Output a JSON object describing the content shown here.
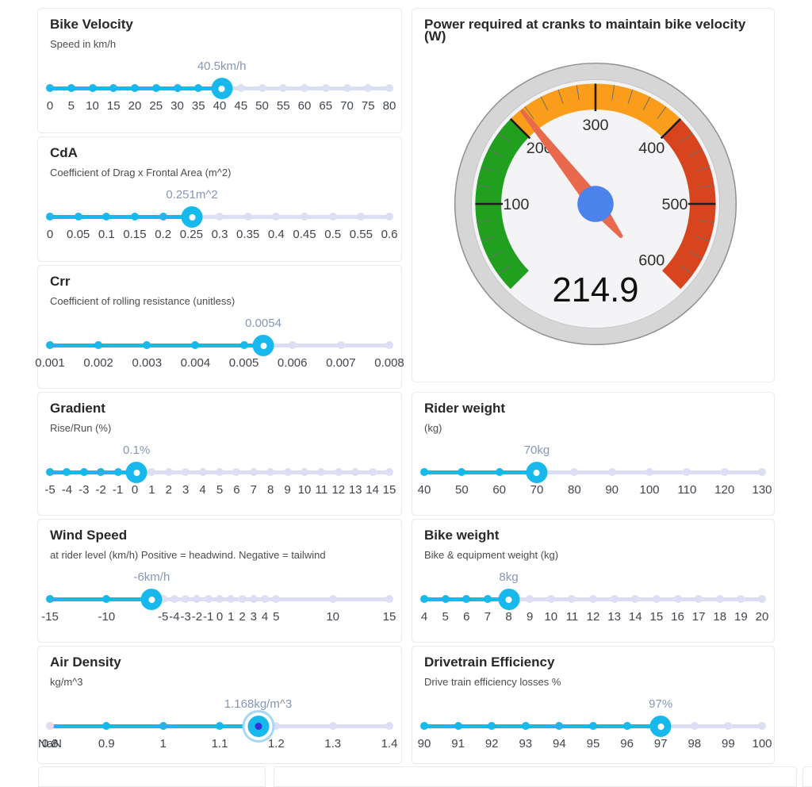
{
  "colors": {
    "slider_accent": "#17b8ec",
    "slider_inactive": "#dcdff3",
    "slider_value_label": "#8697b6",
    "slider_tick_label": "#41454d",
    "focused_handle_dot": "#3432d6",
    "focused_handle_halo": "#a6d7f3",
    "gauge_green": "#21a01f",
    "gauge_orange": "#f99d1b",
    "gauge_red": "#d7441d",
    "gauge_needle": "#e9694d",
    "gauge_pivot": "#4c83ed",
    "gauge_ring": "#d6d6d6",
    "gauge_face": "#f4f4f6"
  },
  "cards": {
    "bike_velocity": {
      "title": "Bike Velocity",
      "subtitle": "Speed in km/h",
      "slider": {
        "min": 0,
        "max": 80,
        "value": 40.5,
        "value_label": "40.5km/h",
        "marks": [
          {
            "v": 0,
            "label": "0"
          },
          {
            "v": 5,
            "label": "5"
          },
          {
            "v": 10,
            "label": "10"
          },
          {
            "v": 15,
            "label": "15"
          },
          {
            "v": 20,
            "label": "20"
          },
          {
            "v": 25,
            "label": "25"
          },
          {
            "v": 30,
            "label": "30"
          },
          {
            "v": 35,
            "label": "35"
          },
          {
            "v": 40,
            "label": "40"
          },
          {
            "v": 45,
            "label": "45"
          },
          {
            "v": 50,
            "label": "50"
          },
          {
            "v": 55,
            "label": "55"
          },
          {
            "v": 60,
            "label": "60"
          },
          {
            "v": 65,
            "label": "65"
          },
          {
            "v": 70,
            "label": "70"
          },
          {
            "v": 75,
            "label": "75"
          },
          {
            "v": 80,
            "label": "80"
          }
        ]
      }
    },
    "cda": {
      "title": "CdA",
      "subtitle": "Coefficient of Drag x Frontal Area (m^2)",
      "slider": {
        "min": 0,
        "max": 0.6,
        "value": 0.251,
        "value_label": "0.251m^2",
        "marks": [
          {
            "v": 0,
            "label": "0"
          },
          {
            "v": 0.05,
            "label": "0.05"
          },
          {
            "v": 0.1,
            "label": "0.1"
          },
          {
            "v": 0.15,
            "label": "0.15"
          },
          {
            "v": 0.2,
            "label": "0.2"
          },
          {
            "v": 0.25,
            "label": "0.25"
          },
          {
            "v": 0.3,
            "label": "0.3"
          },
          {
            "v": 0.35,
            "label": "0.35"
          },
          {
            "v": 0.4,
            "label": "0.4"
          },
          {
            "v": 0.45,
            "label": "0.45"
          },
          {
            "v": 0.5,
            "label": "0.5"
          },
          {
            "v": 0.55,
            "label": "0.55"
          },
          {
            "v": 0.6,
            "label": "0.6"
          }
        ]
      }
    },
    "crr": {
      "title": "Crr",
      "subtitle": "Coefficient of rolling resistance (unitless)",
      "slider": {
        "min": 0.001,
        "max": 0.008,
        "value": 0.0054,
        "value_label": "0.0054",
        "marks": [
          {
            "v": 0.001,
            "label": "0.001"
          },
          {
            "v": 0.002,
            "label": "0.002"
          },
          {
            "v": 0.003,
            "label": "0.003"
          },
          {
            "v": 0.004,
            "label": "0.004"
          },
          {
            "v": 0.005,
            "label": "0.005"
          },
          {
            "v": 0.006,
            "label": "0.006"
          },
          {
            "v": 0.007,
            "label": "0.007"
          },
          {
            "v": 0.008,
            "label": "0.008"
          }
        ]
      }
    },
    "gradient": {
      "title": "Gradient",
      "subtitle": "Rise/Run (%)",
      "slider": {
        "min": -5,
        "max": 15,
        "value": 0.1,
        "value_label": "0.1%",
        "marks": [
          {
            "v": -5,
            "label": "-5"
          },
          {
            "v": -4,
            "label": "-4"
          },
          {
            "v": -3,
            "label": "-3"
          },
          {
            "v": -2,
            "label": "-2"
          },
          {
            "v": -1,
            "label": "-1"
          },
          {
            "v": 0,
            "label": "0"
          },
          {
            "v": 1,
            "label": "1"
          },
          {
            "v": 2,
            "label": "2"
          },
          {
            "v": 3,
            "label": "3"
          },
          {
            "v": 4,
            "label": "4"
          },
          {
            "v": 5,
            "label": "5"
          },
          {
            "v": 6,
            "label": "6"
          },
          {
            "v": 7,
            "label": "7"
          },
          {
            "v": 8,
            "label": "8"
          },
          {
            "v": 9,
            "label": "9"
          },
          {
            "v": 10,
            "label": "10"
          },
          {
            "v": 11,
            "label": "11"
          },
          {
            "v": 12,
            "label": "12"
          },
          {
            "v": 13,
            "label": "13"
          },
          {
            "v": 14,
            "label": "14"
          },
          {
            "v": 15,
            "label": "15"
          }
        ]
      }
    },
    "wind_speed": {
      "title": "Wind Speed",
      "subtitle": "at rider level (km/h) Positive = headwind. Negative = tailwind",
      "slider": {
        "min": -15,
        "max": 15,
        "value": -6,
        "value_label": "-6km/h",
        "marks": [
          {
            "v": -15,
            "label": "-15"
          },
          {
            "v": -10,
            "label": "-10"
          },
          {
            "v": -5,
            "label": "-5"
          },
          {
            "v": -4,
            "label": "-4"
          },
          {
            "v": -3,
            "label": "-3"
          },
          {
            "v": -2,
            "label": "-2"
          },
          {
            "v": -1,
            "label": "-1"
          },
          {
            "v": 0,
            "label": "0"
          },
          {
            "v": 1,
            "label": "1"
          },
          {
            "v": 2,
            "label": "2"
          },
          {
            "v": 3,
            "label": "3"
          },
          {
            "v": 4,
            "label": "4"
          },
          {
            "v": 5,
            "label": "5"
          },
          {
            "v": 10,
            "label": "10"
          },
          {
            "v": 15,
            "label": "15"
          }
        ]
      }
    },
    "air_density": {
      "title": "Air Density",
      "subtitle": "kg/m^3",
      "slider": {
        "min": 0.8,
        "max": 1.4,
        "value": 1.168,
        "value_label": "1.168kg/m^3",
        "focused": true,
        "marks": [
          {
            "v": 0.8,
            "label": "0.8",
            "label2": "NaN",
            "off": true
          },
          {
            "v": 0.9,
            "label": "0.9"
          },
          {
            "v": 1,
            "label": "1"
          },
          {
            "v": 1.1,
            "label": "1.1"
          },
          {
            "v": 1.2,
            "label": "1.2"
          },
          {
            "v": 1.3,
            "label": "1.3"
          },
          {
            "v": 1.4,
            "label": "1.4"
          }
        ]
      }
    },
    "rider_weight": {
      "title": "Rider weight",
      "subtitle": "(kg)",
      "slider": {
        "min": 40,
        "max": 130,
        "value": 70,
        "value_label": "70kg",
        "marks": [
          {
            "v": 40,
            "label": "40"
          },
          {
            "v": 50,
            "label": "50"
          },
          {
            "v": 60,
            "label": "60"
          },
          {
            "v": 70,
            "label": "70"
          },
          {
            "v": 80,
            "label": "80"
          },
          {
            "v": 90,
            "label": "90"
          },
          {
            "v": 100,
            "label": "100"
          },
          {
            "v": 110,
            "label": "110"
          },
          {
            "v": 120,
            "label": "120"
          },
          {
            "v": 130,
            "label": "130"
          }
        ]
      }
    },
    "bike_weight": {
      "title": "Bike weight",
      "subtitle": "Bike & equipment weight (kg)",
      "slider": {
        "min": 4,
        "max": 20,
        "value": 8,
        "value_label": "8kg",
        "marks": [
          {
            "v": 4,
            "label": "4"
          },
          {
            "v": 5,
            "label": "5"
          },
          {
            "v": 6,
            "label": "6"
          },
          {
            "v": 7,
            "label": "7"
          },
          {
            "v": 8,
            "label": "8"
          },
          {
            "v": 9,
            "label": "9"
          },
          {
            "v": 10,
            "label": "10"
          },
          {
            "v": 11,
            "label": "11"
          },
          {
            "v": 12,
            "label": "12"
          },
          {
            "v": 13,
            "label": "13"
          },
          {
            "v": 14,
            "label": "14"
          },
          {
            "v": 15,
            "label": "15"
          },
          {
            "v": 16,
            "label": "16"
          },
          {
            "v": 17,
            "label": "17"
          },
          {
            "v": 18,
            "label": "18"
          },
          {
            "v": 19,
            "label": "19"
          },
          {
            "v": 20,
            "label": "20"
          }
        ]
      }
    },
    "drivetrain_efficiency": {
      "title": "Drivetrain Efficiency",
      "subtitle": "Drive train efficiency losses %",
      "slider": {
        "min": 90,
        "max": 100,
        "value": 97,
        "value_label": "97%",
        "marks": [
          {
            "v": 90,
            "label": "90"
          },
          {
            "v": 91,
            "label": "91"
          },
          {
            "v": 92,
            "label": "92"
          },
          {
            "v": 93,
            "label": "93"
          },
          {
            "v": 94,
            "label": "94"
          },
          {
            "v": 95,
            "label": "95"
          },
          {
            "v": 96,
            "label": "96"
          },
          {
            "v": 97,
            "label": "97"
          },
          {
            "v": 98,
            "label": "98"
          },
          {
            "v": 99,
            "label": "99"
          },
          {
            "v": 100,
            "label": "100"
          }
        ]
      }
    }
  },
  "chart_data": {
    "type": "gauge",
    "title": "Power required at cranks to maintain bike velocity (W)",
    "min": 0,
    "max": 600,
    "value": 214.9,
    "value_display": "214.9",
    "start_angle": 225,
    "end_angle": -45,
    "bands": [
      {
        "from": 0,
        "to": 200,
        "color": "#21a01f"
      },
      {
        "from": 200,
        "to": 400,
        "color": "#f99d1b"
      },
      {
        "from": 400,
        "to": 600,
        "color": "#d7441d"
      }
    ],
    "major_tick_step": 100,
    "minor_tick_step": 20,
    "tick_labels": [
      100,
      200,
      300,
      400,
      500,
      600
    ],
    "needle_color": "#e9694d",
    "pivot_color": "#4c83ed"
  }
}
